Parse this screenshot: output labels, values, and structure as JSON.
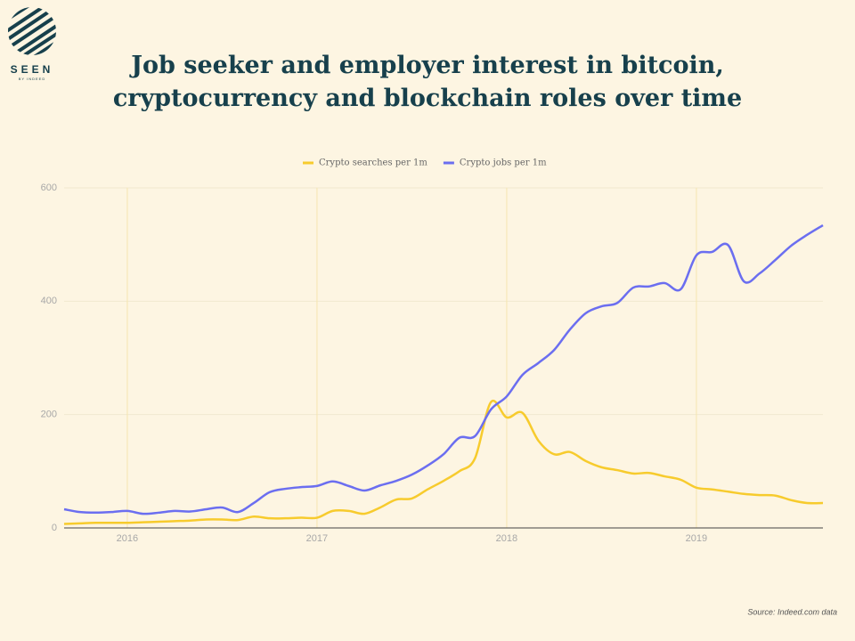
{
  "logo": {
    "name": "SEEN",
    "sub": "BY INDEED"
  },
  "chart_data": {
    "type": "line",
    "title": "Job seeker and employer interest in bitcoin, cryptocurrency and blockchain roles over time",
    "source": "Source: Indeed.com data",
    "x": [
      2015.667,
      2015.75,
      2015.833,
      2015.917,
      2016,
      2016.083,
      2016.167,
      2016.25,
      2016.333,
      2016.417,
      2016.5,
      2016.583,
      2016.667,
      2016.75,
      2016.833,
      2016.917,
      2017,
      2017.083,
      2017.167,
      2017.25,
      2017.333,
      2017.417,
      2017.5,
      2017.583,
      2017.667,
      2017.75,
      2017.833,
      2017.917,
      2018,
      2018.083,
      2018.167,
      2018.25,
      2018.333,
      2018.417,
      2018.5,
      2018.583,
      2018.667,
      2018.75,
      2018.833,
      2018.917,
      2019,
      2019.083,
      2019.167,
      2019.25,
      2019.333,
      2019.417,
      2019.5,
      2019.583,
      2019.667
    ],
    "series": [
      {
        "name": "Crypto searches per 1m",
        "color": "#f7cb2d",
        "values": [
          7,
          8,
          9,
          9,
          9,
          10,
          11,
          12,
          13,
          15,
          15,
          14,
          20,
          17,
          17,
          18,
          18,
          30,
          30,
          25,
          36,
          50,
          52,
          68,
          83,
          100,
          123,
          222,
          195,
          203,
          154,
          130,
          134,
          118,
          107,
          102,
          96,
          97,
          91,
          85,
          71,
          68,
          64,
          60,
          58,
          57,
          49,
          44,
          44
        ]
      },
      {
        "name": "Crypto jobs per 1m",
        "color": "#6b6ef0",
        "values": [
          33,
          28,
          27,
          28,
          30,
          25,
          27,
          30,
          29,
          33,
          36,
          28,
          44,
          63,
          69,
          72,
          74,
          82,
          74,
          66,
          75,
          83,
          94,
          110,
          130,
          159,
          162,
          209,
          232,
          270,
          291,
          314,
          350,
          379,
          391,
          397,
          424,
          426,
          432,
          421,
          481,
          487,
          499,
          435,
          449,
          473,
          498,
          517,
          534
        ]
      }
    ],
    "xlim": [
      2015.667,
      2019.667
    ],
    "xticks": [
      2016,
      2017,
      2018,
      2019
    ],
    "ylim": [
      0,
      600
    ],
    "yticks": [
      0,
      200,
      400,
      600
    ],
    "grid": true,
    "legend": "top"
  }
}
